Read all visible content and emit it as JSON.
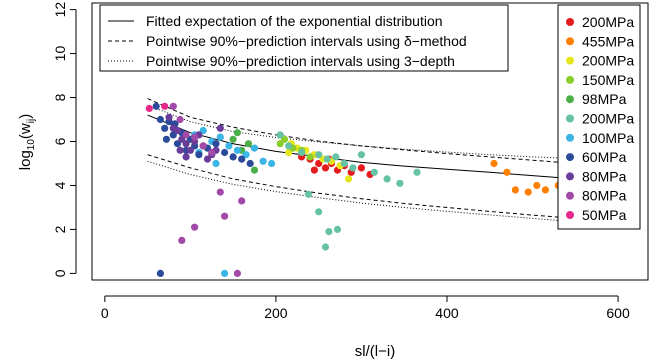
{
  "chart_data": {
    "type": "scatter",
    "xlabel": "sl/(l−i)",
    "ylabel_main": "log",
    "ylabel_sub": "10",
    "ylabel_paren_open": "(w",
    "ylabel_sub2": "ij",
    "ylabel_paren_close": ")",
    "xlim": [
      -15,
      635
    ],
    "ylim": [
      -0.3,
      12.3
    ],
    "xticks": [
      0,
      200,
      400,
      600
    ],
    "yticks": [
      0,
      2,
      4,
      6,
      8,
      10,
      12
    ],
    "line_legend": [
      {
        "label": "Fitted expectation of the exponential distribution",
        "dash": "solid"
      },
      {
        "label": "Pointwise 90%−prediction intervals using δ−method",
        "dash": "dashed"
      },
      {
        "label": "Pointwise 90%−prediction intervals using 3−depth",
        "dash": "dotted"
      }
    ],
    "series": [
      {
        "name": "200MPa",
        "color": "#E41A1C",
        "points": [
          [
            230,
            5.3
          ],
          [
            240,
            5.2
          ],
          [
            250,
            5.0
          ],
          [
            258,
            4.8
          ],
          [
            265,
            5.0
          ],
          [
            272,
            4.7
          ],
          [
            280,
            4.9
          ],
          [
            288,
            4.6
          ],
          [
            300,
            4.8
          ],
          [
            310,
            4.5
          ],
          [
            262,
            5.2
          ],
          [
            245,
            4.7
          ]
        ]
      },
      {
        "name": "455MPa",
        "color": "#FF7F00",
        "points": [
          [
            455,
            5.0
          ],
          [
            470,
            4.6
          ],
          [
            480,
            3.8
          ],
          [
            495,
            3.7
          ],
          [
            505,
            4.0
          ],
          [
            515,
            3.8
          ],
          [
            530,
            4.0
          ],
          [
            545,
            4.1
          ],
          [
            560,
            3.9
          ],
          [
            575,
            3.7
          ],
          [
            590,
            3.5
          ]
        ]
      },
      {
        "name": "200MPa",
        "color": "#E6E61A",
        "points": [
          [
            215,
            5.5
          ],
          [
            225,
            5.7
          ],
          [
            235,
            5.6
          ],
          [
            245,
            5.4
          ],
          [
            255,
            5.2
          ],
          [
            265,
            5.1
          ],
          [
            275,
            4.9
          ],
          [
            285,
            4.3
          ],
          [
            218,
            5.9
          ]
        ]
      },
      {
        "name": "150MPa",
        "color": "#8ACE2B",
        "points": [
          [
            210,
            6.1
          ],
          [
            220,
            5.7
          ],
          [
            230,
            5.6
          ],
          [
            240,
            5.3
          ],
          [
            205,
            5.9
          ]
        ]
      },
      {
        "name": "98MPa",
        "color": "#4DAF4A",
        "points": [
          [
            150,
            6.1
          ],
          [
            160,
            5.6
          ],
          [
            168,
            5.9
          ],
          [
            175,
            4.7
          ],
          [
            155,
            6.4
          ]
        ]
      },
      {
        "name": "200MPa",
        "color": "#66C2A5",
        "points": [
          [
            205,
            6.3
          ],
          [
            215,
            5.8
          ],
          [
            230,
            5.5
          ],
          [
            250,
            5.4
          ],
          [
            260,
            5.2
          ],
          [
            270,
            5.3
          ],
          [
            280,
            5.0
          ],
          [
            290,
            4.8
          ],
          [
            300,
            5.4
          ],
          [
            315,
            4.6
          ],
          [
            330,
            4.3
          ],
          [
            345,
            4.1
          ],
          [
            365,
            4.6
          ],
          [
            238,
            3.6
          ],
          [
            250,
            2.8
          ],
          [
            262,
            1.9
          ],
          [
            272,
            2.0
          ],
          [
            258,
            1.2
          ]
        ]
      },
      {
        "name": "100MPa",
        "color": "#3BB4E6",
        "points": [
          [
            105,
            6.3
          ],
          [
            115,
            6.5
          ],
          [
            125,
            6.0
          ],
          [
            135,
            6.2
          ],
          [
            145,
            5.8
          ],
          [
            155,
            5.6
          ],
          [
            165,
            5.4
          ],
          [
            175,
            5.7
          ],
          [
            185,
            5.1
          ],
          [
            195,
            5.0
          ],
          [
            130,
            5.0
          ],
          [
            110,
            5.5
          ],
          [
            140,
            0.0
          ]
        ]
      },
      {
        "name": "60MPa",
        "color": "#2D4B9B",
        "points": [
          [
            60,
            7.6
          ],
          [
            65,
            7.0
          ],
          [
            70,
            6.6
          ],
          [
            75,
            6.9
          ],
          [
            80,
            6.3
          ],
          [
            85,
            5.9
          ],
          [
            90,
            6.4
          ],
          [
            95,
            5.6
          ],
          [
            100,
            6.1
          ],
          [
            105,
            5.8
          ],
          [
            110,
            5.4
          ],
          [
            120,
            5.7
          ],
          [
            130,
            5.9
          ],
          [
            140,
            5.5
          ],
          [
            150,
            5.3
          ],
          [
            160,
            5.2
          ],
          [
            170,
            5.0
          ],
          [
            65,
            0.0
          ],
          [
            72,
            6.1
          ],
          [
            82,
            6.8
          ]
        ]
      },
      {
        "name": "80MPa",
        "color": "#6A3D9A",
        "points": [
          [
            75,
            7.1
          ],
          [
            80,
            6.6
          ],
          [
            85,
            6.5
          ],
          [
            90,
            6.1
          ],
          [
            95,
            5.9
          ],
          [
            100,
            5.6
          ],
          [
            105,
            6.0
          ],
          [
            110,
            6.3
          ],
          [
            115,
            5.8
          ],
          [
            120,
            5.2
          ],
          [
            125,
            5.4
          ],
          [
            130,
            5.6
          ],
          [
            135,
            6.6
          ],
          [
            95,
            5.3
          ],
          [
            88,
            5.6
          ]
        ]
      },
      {
        "name": "80MPa",
        "color": "#A14AA8",
        "points": [
          [
            80,
            7.6
          ],
          [
            88,
            7.0
          ],
          [
            95,
            6.3
          ],
          [
            105,
            6.2
          ],
          [
            115,
            5.8
          ],
          [
            125,
            5.5
          ],
          [
            135,
            3.7
          ],
          [
            140,
            2.6
          ],
          [
            105,
            2.1
          ],
          [
            90,
            1.5
          ],
          [
            160,
            3.3
          ],
          [
            155,
            0.0
          ]
        ]
      },
      {
        "name": "50MPa",
        "color": "#E7298A",
        "points": [
          [
            52,
            7.5
          ],
          [
            70,
            7.6
          ]
        ]
      }
    ],
    "curves": {
      "fitted": {
        "x": [
          50,
          100,
          150,
          200,
          250,
          300,
          350,
          400,
          450,
          500,
          550,
          590
        ],
        "y": [
          7.2,
          6.4,
          5.9,
          5.55,
          5.3,
          5.05,
          4.88,
          4.74,
          4.6,
          4.45,
          4.3,
          4.15
        ]
      },
      "delta_upper": {
        "x": [
          50,
          100,
          150,
          200,
          250,
          300,
          350,
          400,
          450,
          500,
          550,
          590
        ],
        "y": [
          7.95,
          7.1,
          6.65,
          6.3,
          6.02,
          5.8,
          5.62,
          5.45,
          5.3,
          5.15,
          5.0,
          4.88
        ]
      },
      "delta_lower": {
        "x": [
          50,
          100,
          150,
          200,
          250,
          300,
          350,
          400,
          450,
          500,
          550,
          590
        ],
        "y": [
          5.4,
          4.8,
          4.3,
          3.95,
          3.65,
          3.4,
          3.18,
          3.0,
          2.82,
          2.65,
          2.5,
          2.35
        ]
      },
      "depth_upper": {
        "x": [
          50,
          100,
          150,
          200,
          250,
          300,
          350,
          400,
          450,
          500,
          550,
          590
        ],
        "y": [
          7.65,
          6.9,
          6.45,
          6.18,
          5.98,
          5.8,
          5.65,
          5.52,
          5.4,
          5.3,
          5.22,
          5.15
        ]
      },
      "depth_lower": {
        "x": [
          50,
          100,
          150,
          200,
          250,
          300,
          350,
          400,
          450,
          500,
          550,
          590
        ],
        "y": [
          5.1,
          4.5,
          4.05,
          3.72,
          3.45,
          3.2,
          3.0,
          2.82,
          2.66,
          2.5,
          2.35,
          2.2
        ]
      }
    }
  }
}
